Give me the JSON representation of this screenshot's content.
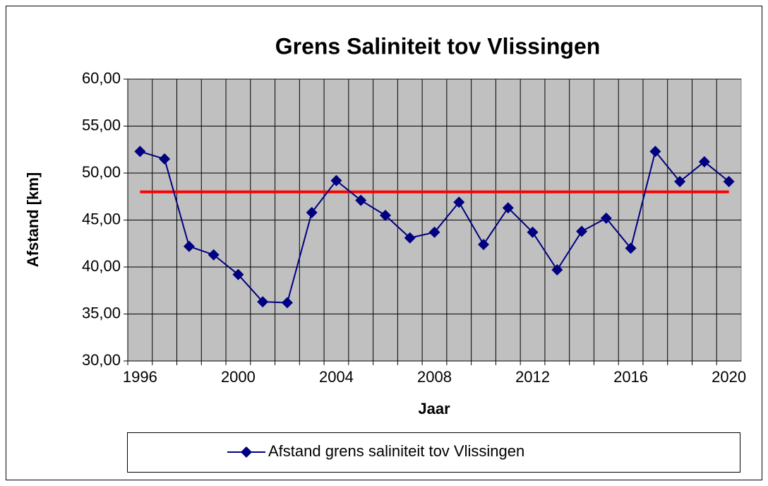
{
  "chart_data": {
    "type": "line",
    "title": "Grens Saliniteit tov Vlissingen",
    "x_label": "Jaar",
    "y_label": "Afstand [km]",
    "categories": [
      "1996",
      null,
      null,
      null,
      "2000",
      null,
      null,
      null,
      "2004",
      null,
      null,
      null,
      "2008",
      null,
      null,
      null,
      "2012",
      null,
      null,
      null,
      "2016",
      null,
      null,
      null,
      "2020"
    ],
    "series": [
      {
        "name": "Afstand grens saliniteit tov Vlissingen",
        "color": "#000080",
        "values": [
          52.3,
          51.5,
          42.2,
          41.3,
          39.2,
          36.3,
          36.2,
          45.8,
          49.2,
          47.1,
          45.5,
          43.1,
          43.7,
          46.9,
          42.4,
          46.3,
          43.7,
          39.7,
          43.8,
          45.2,
          42.0,
          52.3,
          49.1,
          51.2,
          49.1
        ]
      }
    ],
    "reference_line": {
      "value": 48,
      "color": "#ff0000"
    },
    "ylim": [
      30,
      60
    ],
    "yticks": [
      {
        "value": 30,
        "label": "30,00"
      },
      {
        "value": 35,
        "label": "35,00"
      },
      {
        "value": 40,
        "label": "40,00"
      },
      {
        "value": 45,
        "label": "45,00"
      },
      {
        "value": 50,
        "label": "50,00"
      },
      {
        "value": 55,
        "label": "55,00"
      },
      {
        "value": 60,
        "label": "60,00"
      }
    ],
    "grid": true,
    "legend": "bottom"
  }
}
